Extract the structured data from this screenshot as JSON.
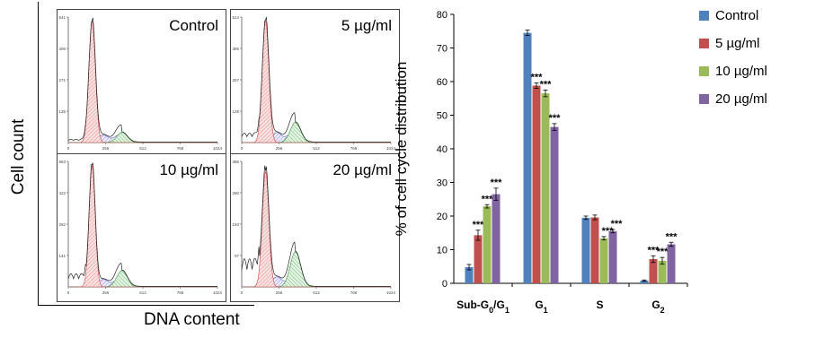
{
  "flow": {
    "ylabel": "Cell count",
    "xlabel": "DNA content",
    "panels": [
      {
        "label": "Control",
        "ymax_tick": "541",
        "yticks": [
          "135",
          "271",
          "406",
          "541"
        ]
      },
      {
        "label": "5 µg/ml",
        "ymax_tick": "514",
        "yticks": [
          "128",
          "257",
          "385",
          "514"
        ]
      },
      {
        "label": "10 µg/ml",
        "ymax_tick": "563",
        "yticks": [
          "141",
          "282",
          "422",
          "563"
        ]
      },
      {
        "label": "20 µg/ml",
        "ymax_tick": "386",
        "yticks": [
          "97",
          "193",
          "290",
          "386"
        ]
      }
    ],
    "xticks": [
      "0",
      "256",
      "512",
      "768",
      "1024"
    ]
  },
  "chart_data": {
    "type": "bar",
    "ylabel": "% of cell cycle distribution",
    "ylim": [
      0,
      80
    ],
    "yticks": [
      "0",
      "10",
      "20",
      "30",
      "40",
      "50",
      "60",
      "70",
      "80"
    ],
    "categories": [
      "Sub-G0/G1",
      "G1",
      "S",
      "G2"
    ],
    "category_labels": [
      {
        "base": "Sub-G",
        "sub1": "0",
        "mid": "/G",
        "sub2": "1"
      },
      {
        "base": "G",
        "sub1": "1",
        "mid": "",
        "sub2": ""
      },
      {
        "base": "S",
        "sub1": "",
        "mid": "",
        "sub2": ""
      },
      {
        "base": "G",
        "sub1": "2",
        "mid": "",
        "sub2": ""
      }
    ],
    "series": [
      {
        "name": "Control",
        "color": "#4f81bd",
        "values": [
          4.8,
          74.5,
          19.5,
          0.8
        ],
        "errors": [
          0.8,
          0.8,
          0.5,
          0.2
        ],
        "stars": [
          "",
          "",
          "",
          ""
        ]
      },
      {
        "name": "5 µg/ml",
        "color": "#c0504d",
        "values": [
          14.3,
          58.8,
          19.6,
          7.2
        ],
        "errors": [
          1.5,
          0.8,
          0.7,
          1.0
        ],
        "stars": [
          "***",
          "***",
          "",
          "***"
        ]
      },
      {
        "name": "10 µg/ml",
        "color": "#9bbb59",
        "values": [
          22.9,
          56.5,
          13.4,
          6.7
        ],
        "errors": [
          0.5,
          1.0,
          0.5,
          1.0
        ],
        "stars": [
          "***",
          "***",
          "***",
          "***"
        ]
      },
      {
        "name": "20 µg/ml",
        "color": "#8064a2",
        "values": [
          26.5,
          46.5,
          15.5,
          11.6
        ],
        "errors": [
          1.8,
          1.0,
          0.5,
          0.6
        ],
        "stars": [
          "***",
          "***",
          "***",
          "***"
        ]
      }
    ],
    "legend_position": "top-right",
    "grid": false
  }
}
